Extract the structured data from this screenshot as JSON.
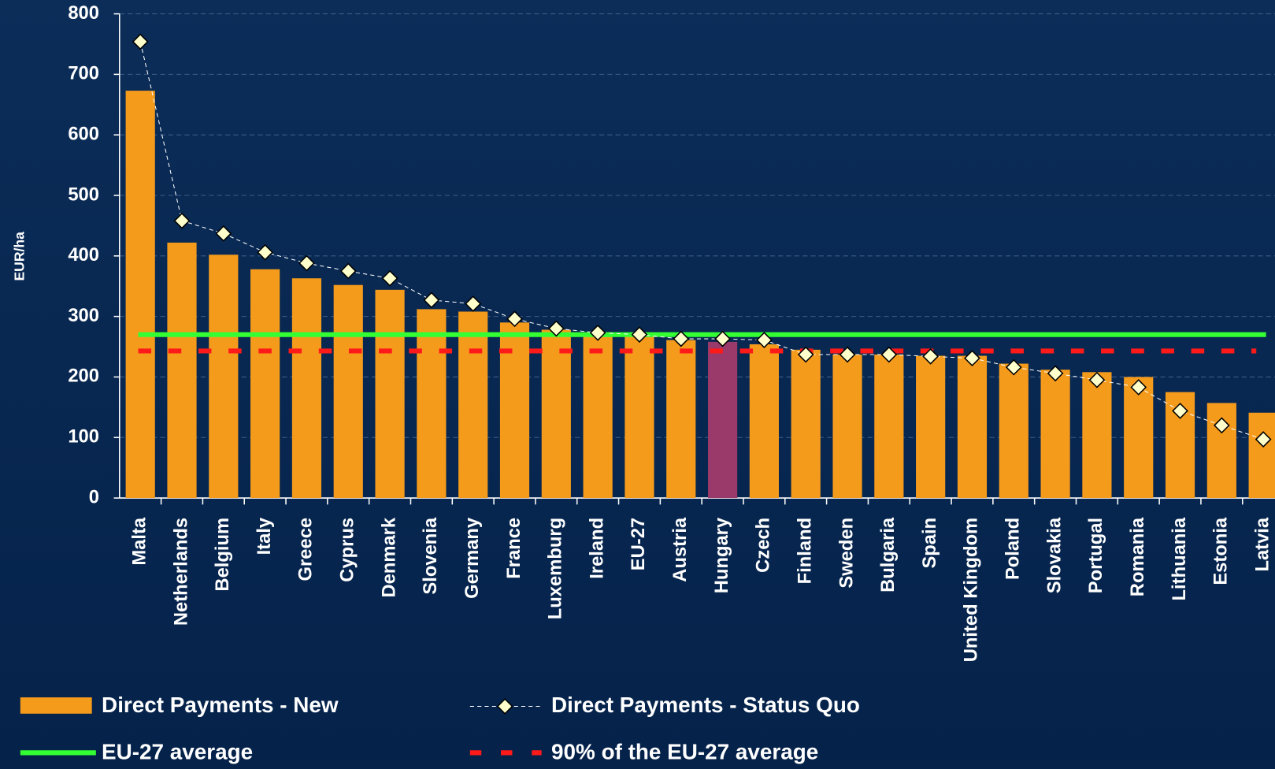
{
  "chart_data": {
    "type": "bar",
    "y_label": "EUR/ha",
    "categories": [
      "Malta",
      "Netherlands",
      "Belgium",
      "Italy",
      "Greece",
      "Cyprus",
      "Denmark",
      "Slovenia",
      "Germany",
      "France",
      "Luxemburg",
      "Ireland",
      "EU-27",
      "Austria",
      "Hungary",
      "Czech",
      "Finland",
      "Sweden",
      "Bulgaria",
      "Spain",
      "United Kingdom",
      "Poland",
      "Slovakia",
      "Portugal",
      "Romania",
      "Lithuania",
      "Estonia",
      "Latvia"
    ],
    "series": [
      {
        "name": "Direct Payments - New",
        "type": "bar",
        "color": "#f59b1c",
        "colors": [
          "#f59b1c",
          "#f59b1c",
          "#f59b1c",
          "#f59b1c",
          "#f59b1c",
          "#f59b1c",
          "#f59b1c",
          "#f59b1c",
          "#f59b1c",
          "#f59b1c",
          "#f59b1c",
          "#f59b1c",
          "#f59b1c",
          "#f59b1c",
          "#9a3a6a",
          "#f59b1c",
          "#f59b1c",
          "#f59b1c",
          "#f59b1c",
          "#f59b1c",
          "#f59b1c",
          "#f59b1c",
          "#f59b1c",
          "#f59b1c",
          "#f59b1c",
          "#f59b1c",
          "#f59b1c",
          "#f59b1c"
        ],
        "values": [
          673,
          422,
          402,
          378,
          363,
          352,
          344,
          312,
          308,
          290,
          278,
          274,
          269,
          261,
          258,
          254,
          245,
          237,
          237,
          235,
          235,
          222,
          212,
          208,
          200,
          175,
          157,
          141
        ]
      },
      {
        "name": "Direct Payments - Status Quo",
        "type": "line",
        "color": "#ffffcc",
        "values": [
          754,
          458,
          437,
          406,
          388,
          375,
          363,
          327,
          321,
          296,
          280,
          273,
          270,
          263,
          263,
          261,
          237,
          237,
          237,
          234,
          231,
          216,
          206,
          195,
          183,
          144,
          120,
          97
        ]
      }
    ],
    "reference_lines": [
      {
        "name": "EU-27 average",
        "value": 270,
        "color": "#33ff33",
        "style": "solid"
      },
      {
        "name": "90% of the EU-27 average",
        "value": 243,
        "color": "#ff1a1a",
        "style": "dashed"
      }
    ],
    "ylim": [
      0,
      800
    ],
    "yticks": [
      0,
      100,
      200,
      300,
      400,
      500,
      600,
      700,
      800
    ],
    "grid": true
  }
}
